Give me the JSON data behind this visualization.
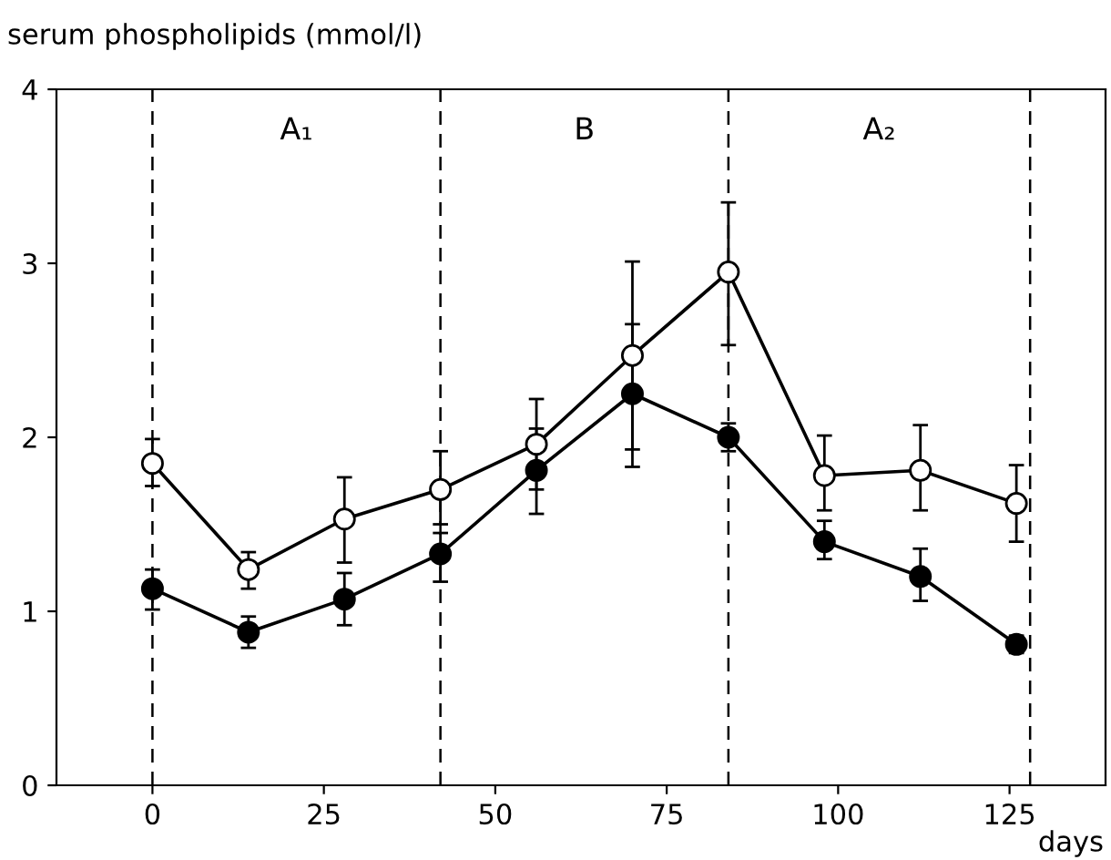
{
  "chart_data": {
    "type": "line",
    "ylabel": "serum phospholipids (mmol/l)",
    "xlabel": "days",
    "x": [
      0,
      14,
      28,
      42,
      56,
      70,
      84,
      98,
      112,
      126
    ],
    "series": [
      {
        "color": "#000000",
        "values": [
          1.85,
          1.24,
          1.53,
          1.7,
          1.96,
          2.47,
          2.95,
          1.78,
          1.81,
          1.62
        ],
        "errors": [
          [
            1.72,
            1.99
          ],
          [
            1.13,
            1.34
          ],
          [
            1.28,
            1.77
          ],
          [
            1.5,
            1.92
          ],
          [
            1.7,
            2.22
          ],
          [
            1.93,
            3.01
          ],
          [
            2.53,
            3.35
          ],
          [
            1.58,
            2.01
          ],
          [
            1.58,
            2.07
          ],
          [
            1.4,
            1.84
          ]
        ]
      },
      {
        "color": "#000000",
        "values": [
          1.13,
          0.88,
          1.07,
          1.33,
          1.81,
          2.25,
          2.0,
          1.4,
          1.2,
          0.81
        ],
        "errors": [
          [
            1.01,
            1.24
          ],
          [
            0.79,
            0.97
          ],
          [
            0.92,
            1.22
          ],
          [
            1.17,
            1.45
          ],
          [
            1.56,
            2.05
          ],
          [
            1.83,
            2.65
          ],
          [
            1.92,
            2.08
          ],
          [
            1.3,
            1.52
          ],
          [
            1.06,
            1.36
          ],
          [
            0.76,
            0.86
          ]
        ]
      }
    ],
    "marker": "circle",
    "line_style": "solid",
    "xlim": [
      -14,
      139
    ],
    "ylim": [
      0,
      4
    ],
    "xticks": [
      0,
      25,
      50,
      75,
      100,
      125
    ],
    "yticks": [
      0,
      1,
      2,
      3,
      4
    ],
    "ref_lines": [
      {
        "axis": "x",
        "value": 0,
        "line_style": "dashed",
        "color": "#000000"
      },
      {
        "axis": "x",
        "value": 42,
        "line_style": "dashed",
        "color": "#000000"
      },
      {
        "axis": "x",
        "value": 84,
        "line_style": "dashed",
        "color": "#000000"
      },
      {
        "axis": "x",
        "value": 128,
        "line_style": "dashed",
        "color": "#000000"
      }
    ],
    "annotations": [
      "A₁",
      "B",
      "A₂"
    ],
    "grid": false,
    "legend": false
  }
}
